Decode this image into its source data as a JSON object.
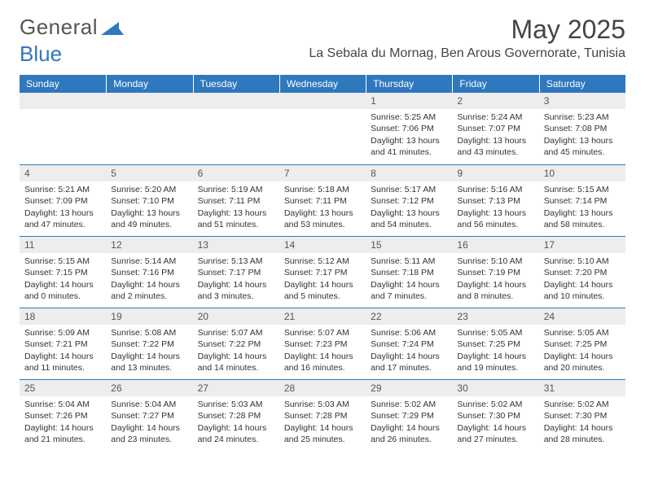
{
  "brand": {
    "part1": "General",
    "part2": "Blue"
  },
  "title": "May 2025",
  "location": "La Sebala du Mornag, Ben Arous Governorate, Tunisia",
  "colors": {
    "header_blue": "#2f78bd",
    "daynum_bg": "#ededed",
    "text": "#333333",
    "title_color": "#444444",
    "page_bg": "#ffffff"
  },
  "weekdays": [
    "Sunday",
    "Monday",
    "Tuesday",
    "Wednesday",
    "Thursday",
    "Friday",
    "Saturday"
  ],
  "calendar": {
    "rows": 5,
    "cols": 7,
    "first_weekday_index": 4,
    "days_in_month": 31,
    "entries": {
      "1": {
        "sunrise": "5:25 AM",
        "sunset": "7:06 PM",
        "daylight": "13 hours and 41 minutes."
      },
      "2": {
        "sunrise": "5:24 AM",
        "sunset": "7:07 PM",
        "daylight": "13 hours and 43 minutes."
      },
      "3": {
        "sunrise": "5:23 AM",
        "sunset": "7:08 PM",
        "daylight": "13 hours and 45 minutes."
      },
      "4": {
        "sunrise": "5:21 AM",
        "sunset": "7:09 PM",
        "daylight": "13 hours and 47 minutes."
      },
      "5": {
        "sunrise": "5:20 AM",
        "sunset": "7:10 PM",
        "daylight": "13 hours and 49 minutes."
      },
      "6": {
        "sunrise": "5:19 AM",
        "sunset": "7:11 PM",
        "daylight": "13 hours and 51 minutes."
      },
      "7": {
        "sunrise": "5:18 AM",
        "sunset": "7:11 PM",
        "daylight": "13 hours and 53 minutes."
      },
      "8": {
        "sunrise": "5:17 AM",
        "sunset": "7:12 PM",
        "daylight": "13 hours and 54 minutes."
      },
      "9": {
        "sunrise": "5:16 AM",
        "sunset": "7:13 PM",
        "daylight": "13 hours and 56 minutes."
      },
      "10": {
        "sunrise": "5:15 AM",
        "sunset": "7:14 PM",
        "daylight": "13 hours and 58 minutes."
      },
      "11": {
        "sunrise": "5:15 AM",
        "sunset": "7:15 PM",
        "daylight": "14 hours and 0 minutes."
      },
      "12": {
        "sunrise": "5:14 AM",
        "sunset": "7:16 PM",
        "daylight": "14 hours and 2 minutes."
      },
      "13": {
        "sunrise": "5:13 AM",
        "sunset": "7:17 PM",
        "daylight": "14 hours and 3 minutes."
      },
      "14": {
        "sunrise": "5:12 AM",
        "sunset": "7:17 PM",
        "daylight": "14 hours and 5 minutes."
      },
      "15": {
        "sunrise": "5:11 AM",
        "sunset": "7:18 PM",
        "daylight": "14 hours and 7 minutes."
      },
      "16": {
        "sunrise": "5:10 AM",
        "sunset": "7:19 PM",
        "daylight": "14 hours and 8 minutes."
      },
      "17": {
        "sunrise": "5:10 AM",
        "sunset": "7:20 PM",
        "daylight": "14 hours and 10 minutes."
      },
      "18": {
        "sunrise": "5:09 AM",
        "sunset": "7:21 PM",
        "daylight": "14 hours and 11 minutes."
      },
      "19": {
        "sunrise": "5:08 AM",
        "sunset": "7:22 PM",
        "daylight": "14 hours and 13 minutes."
      },
      "20": {
        "sunrise": "5:07 AM",
        "sunset": "7:22 PM",
        "daylight": "14 hours and 14 minutes."
      },
      "21": {
        "sunrise": "5:07 AM",
        "sunset": "7:23 PM",
        "daylight": "14 hours and 16 minutes."
      },
      "22": {
        "sunrise": "5:06 AM",
        "sunset": "7:24 PM",
        "daylight": "14 hours and 17 minutes."
      },
      "23": {
        "sunrise": "5:05 AM",
        "sunset": "7:25 PM",
        "daylight": "14 hours and 19 minutes."
      },
      "24": {
        "sunrise": "5:05 AM",
        "sunset": "7:25 PM",
        "daylight": "14 hours and 20 minutes."
      },
      "25": {
        "sunrise": "5:04 AM",
        "sunset": "7:26 PM",
        "daylight": "14 hours and 21 minutes."
      },
      "26": {
        "sunrise": "5:04 AM",
        "sunset": "7:27 PM",
        "daylight": "14 hours and 23 minutes."
      },
      "27": {
        "sunrise": "5:03 AM",
        "sunset": "7:28 PM",
        "daylight": "14 hours and 24 minutes."
      },
      "28": {
        "sunrise": "5:03 AM",
        "sunset": "7:28 PM",
        "daylight": "14 hours and 25 minutes."
      },
      "29": {
        "sunrise": "5:02 AM",
        "sunset": "7:29 PM",
        "daylight": "14 hours and 26 minutes."
      },
      "30": {
        "sunrise": "5:02 AM",
        "sunset": "7:30 PM",
        "daylight": "14 hours and 27 minutes."
      },
      "31": {
        "sunrise": "5:02 AM",
        "sunset": "7:30 PM",
        "daylight": "14 hours and 28 minutes."
      }
    },
    "labels": {
      "sunrise": "Sunrise:",
      "sunset": "Sunset:",
      "daylight": "Daylight:"
    }
  }
}
